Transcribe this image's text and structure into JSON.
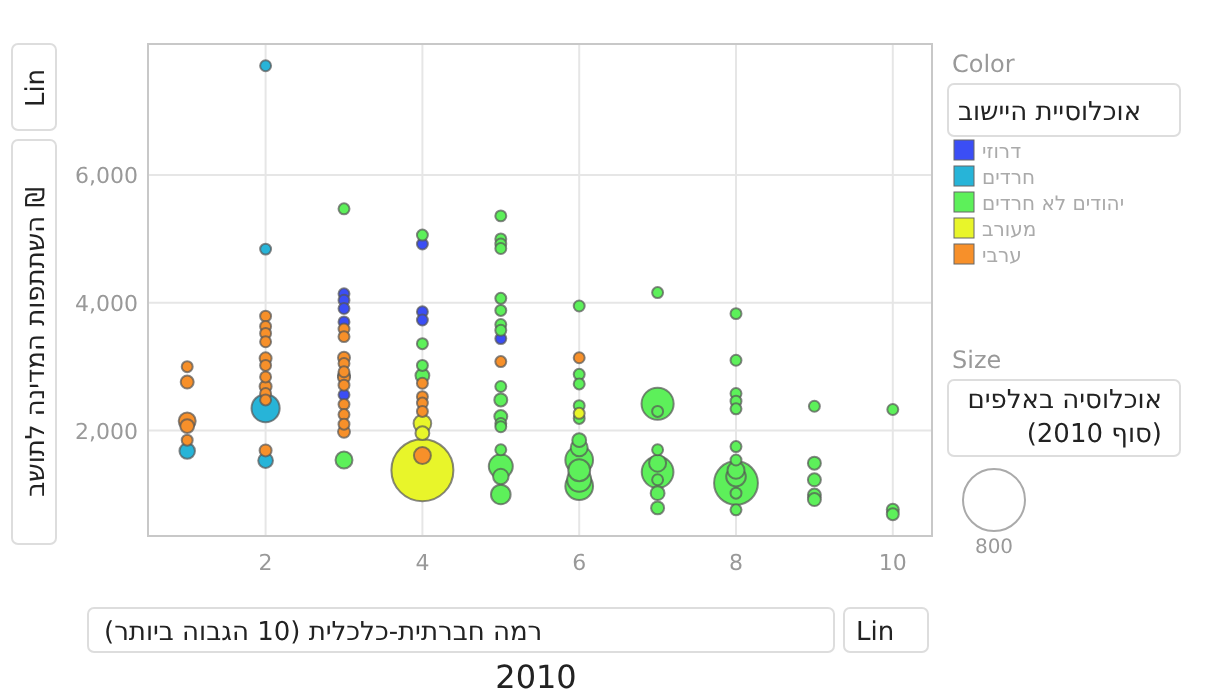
{
  "chart_data": {
    "type": "bubble",
    "xlabel": "רמה חברתית-כלכלית (10 הגבוה ביותר)",
    "ylabel": "השתתפות המדינה לתושב ₪",
    "legend_title": "אוכלוסיית היישוב",
    "legend": "right",
    "grid": true,
    "marker": "circle",
    "xlim": [
      0.5,
      10.5
    ],
    "xticks": [
      2,
      4,
      6,
      8,
      10
    ],
    "ylim": [
      350,
      8050
    ],
    "yticks": [
      {
        "value": 2000,
        "label": "2,000"
      },
      {
        "value": 4000,
        "label": "4,000"
      },
      {
        "value": 6000,
        "label": "6,000"
      }
    ],
    "size_legend": [
      {
        "value": 800,
        "label": "800"
      }
    ],
    "annotations": [
      "Lin",
      "Lin",
      "2010",
      "Color",
      "Size",
      "אוכלוסיה באלפים (סוף 2010)"
    ],
    "series": [
      {
        "name": "דרוזי",
        "color": "#3b4ef5",
        "x": [
          3,
          3,
          3,
          3,
          3,
          4,
          4,
          4,
          5
        ],
        "values": [
          4140,
          4040,
          3910,
          3700,
          2560,
          4920,
          3860,
          3730,
          3440
        ],
        "sizes": [
          25,
          25,
          25,
          25,
          25,
          25,
          25,
          25,
          25
        ]
      },
      {
        "name": "חרדים",
        "color": "#27b4d8",
        "x": [
          1,
          2,
          2,
          2,
          2
        ],
        "values": [
          1680,
          7710,
          4840,
          2350,
          1530
        ],
        "sizes": [
          50,
          25,
          25,
          165,
          45
        ]
      },
      {
        "name": "יהודים לא חרדים",
        "color": "#5df05a",
        "x": [
          3,
          3,
          3,
          4,
          4,
          4,
          4,
          5,
          5,
          5,
          5,
          5,
          5,
          5,
          5,
          5,
          5,
          5,
          5,
          5,
          5,
          5,
          5,
          5,
          6,
          6,
          6,
          6,
          6,
          6,
          6,
          6,
          6,
          6,
          6,
          7,
          7,
          7,
          7,
          7,
          7,
          7,
          7,
          7,
          8,
          8,
          8,
          8,
          8,
          8,
          8,
          8,
          8,
          8,
          8,
          8,
          9,
          9,
          9,
          9,
          9,
          10,
          10,
          10
        ],
        "values": [
          5470,
          2860,
          1540,
          5060,
          3360,
          3020,
          2860,
          5360,
          5000,
          4920,
          4850,
          4070,
          3880,
          3660,
          3570,
          2690,
          2480,
          2220,
          2110,
          2060,
          1700,
          1440,
          1280,
          1000,
          3950,
          2880,
          2730,
          2390,
          2190,
          1850,
          1730,
          1540,
          1380,
          1230,
          1130,
          4160,
          2420,
          2300,
          1700,
          1490,
          1350,
          1230,
          1020,
          790,
          3830,
          3100,
          2580,
          2460,
          2340,
          1750,
          1540,
          1380,
          1280,
          1180,
          1020,
          760,
          2380,
          1490,
          1230,
          990,
          920,
          2330,
          760,
          690
        ],
        "sizes": [
          25,
          30,
          60,
          25,
          25,
          25,
          40,
          25,
          25,
          25,
          25,
          25,
          25,
          25,
          25,
          25,
          35,
          35,
          25,
          25,
          25,
          120,
          50,
          80,
          25,
          25,
          25,
          25,
          25,
          40,
          60,
          160,
          100,
          120,
          160,
          25,
          215,
          25,
          25,
          60,
          210,
          25,
          40,
          35,
          25,
          25,
          25,
          25,
          25,
          25,
          25,
          60,
          80,
          400,
          25,
          25,
          25,
          35,
          35,
          35,
          35,
          25,
          30,
          30
        ]
      },
      {
        "name": "מעורב",
        "color": "#e8f52a",
        "x": [
          4,
          4,
          4,
          6
        ],
        "values": [
          2110,
          1960,
          1380,
          2270
        ],
        "sizes": [
          65,
          40,
          800,
          25
        ]
      },
      {
        "name": "ערבי",
        "color": "#f7902a",
        "x": [
          1,
          1,
          1,
          1,
          1,
          2,
          2,
          2,
          2,
          2,
          2,
          2,
          2,
          2,
          2,
          2,
          3,
          3,
          3,
          3,
          3,
          3,
          3,
          3,
          3,
          3,
          3,
          4,
          4,
          4,
          4,
          4,
          5,
          6
        ],
        "values": [
          3000,
          2760,
          2150,
          2070,
          1850,
          3790,
          3630,
          3520,
          3390,
          3130,
          3020,
          2840,
          2690,
          2580,
          2480,
          1690,
          3590,
          3470,
          3140,
          3050,
          2920,
          2830,
          2710,
          2410,
          2250,
          2100,
          1980,
          2740,
          2530,
          2430,
          2300,
          1610,
          3080,
          3140
        ],
        "sizes": [
          25,
          35,
          60,
          40,
          25,
          25,
          25,
          25,
          25,
          30,
          25,
          25,
          30,
          25,
          25,
          30,
          25,
          25,
          30,
          25,
          25,
          30,
          25,
          25,
          25,
          25,
          30,
          25,
          25,
          25,
          25,
          60,
          25,
          25
        ]
      }
    ]
  }
}
